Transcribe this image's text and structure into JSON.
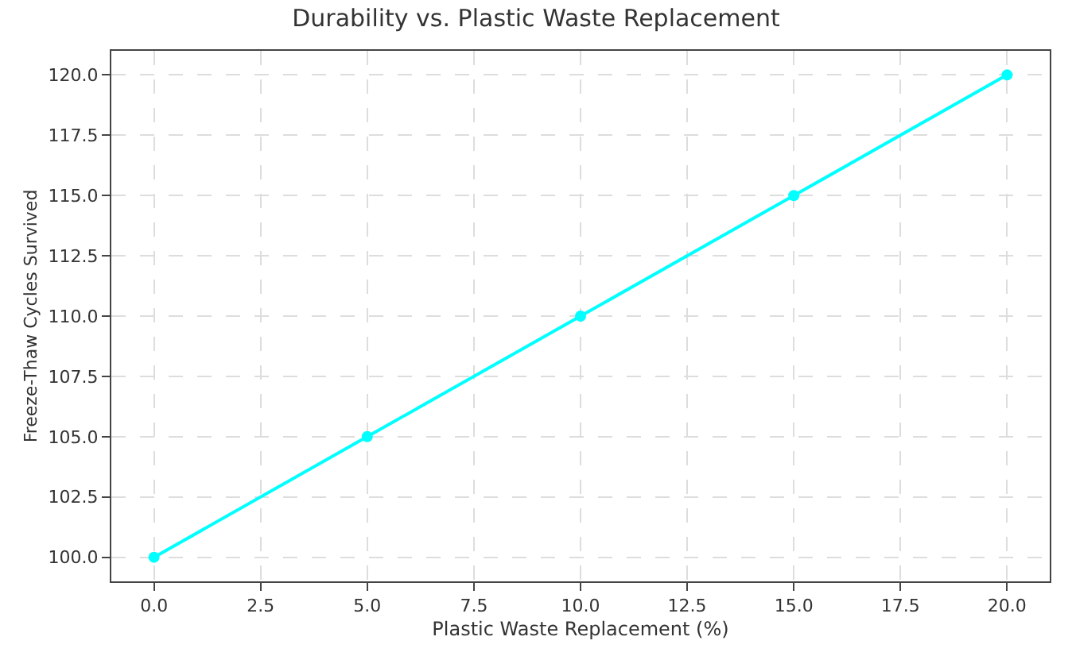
{
  "chart_data": {
    "type": "line",
    "title": "Durability vs. Plastic Waste Replacement",
    "xlabel": "Plastic Waste Replacement (%)",
    "ylabel": "Freeze-Thaw Cycles Survived",
    "x": [
      0,
      5,
      10,
      15,
      20
    ],
    "series": [
      {
        "color": "#00ffff",
        "values": [
          100,
          105,
          110,
          115,
          120
        ]
      }
    ],
    "xlim": [
      -1,
      21
    ],
    "ylim": [
      99,
      121
    ],
    "xticks": [
      {
        "value": 0,
        "label": "0.0"
      },
      {
        "value": 2.5,
        "label": "2.5"
      },
      {
        "value": 5,
        "label": "5.0"
      },
      {
        "value": 7.5,
        "label": "7.5"
      },
      {
        "value": 10,
        "label": "10.0"
      },
      {
        "value": 12.5,
        "label": "12.5"
      },
      {
        "value": 15,
        "label": "15.0"
      },
      {
        "value": 17.5,
        "label": "17.5"
      },
      {
        "value": 20,
        "label": "20.0"
      }
    ],
    "yticks": [
      {
        "value": 100,
        "label": "100.0"
      },
      {
        "value": 102.5,
        "label": "102.5"
      },
      {
        "value": 105,
        "label": "105.0"
      },
      {
        "value": 107.5,
        "label": "107.5"
      },
      {
        "value": 110,
        "label": "110.0"
      },
      {
        "value": 112.5,
        "label": "112.5"
      },
      {
        "value": 115,
        "label": "115.0"
      },
      {
        "value": 117.5,
        "label": "117.5"
      },
      {
        "value": 120,
        "label": "120.0"
      }
    ],
    "grid": true,
    "marker": "circle",
    "line_style": "solid"
  }
}
